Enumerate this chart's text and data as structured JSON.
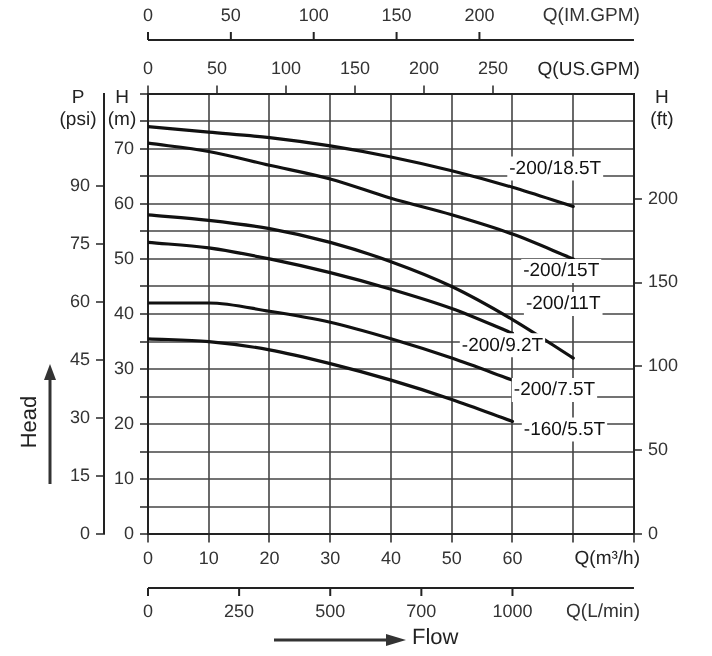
{
  "chart_data": {
    "type": "line",
    "xlabel": "Q(m³/h)",
    "ylabel": "H (m)",
    "y2label": "H (ft)",
    "y3label": "P (psi)",
    "x2label": "Q(US.GPM)",
    "annotations": [
      "Q(L/min)",
      "0",
      "250",
      "500",
      "700",
      "1000",
      "Q(IM.GPM)",
      "0",
      "50",
      "100",
      "150",
      "200",
      "Head",
      "Flow"
    ],
    "x": [
      0,
      10,
      20,
      30,
      40,
      50,
      60,
      70
    ],
    "series": [
      {
        "name": "-200/18.5T",
        "color": "#111111",
        "values": [
          74,
          73,
          72,
          70.5,
          68.5,
          66,
          63,
          59.5
        ]
      },
      {
        "name": "-200/15T",
        "color": "#111111",
        "values": [
          71,
          69.5,
          67,
          64.5,
          61,
          58,
          54.5,
          50
        ]
      },
      {
        "name": "-200/11T",
        "color": "#111111",
        "values": [
          58,
          57,
          55.5,
          53,
          49.5,
          45,
          39,
          32
        ]
      },
      {
        "name": "-200/9.2T",
        "color": "#111111",
        "values": [
          53,
          52,
          50,
          47.5,
          44.5,
          41,
          36.5,
          null
        ]
      },
      {
        "name": "-200/7.5T",
        "color": "#111111",
        "values": [
          42,
          42,
          40.5,
          38.5,
          35.5,
          32,
          28,
          null
        ]
      },
      {
        "name": "-160/5.5T",
        "color": "#111111",
        "values": [
          35.5,
          35,
          33.5,
          31,
          28,
          24.5,
          20.5,
          null
        ]
      }
    ],
    "xlim": [
      0,
      80
    ],
    "xticks": [
      0,
      10,
      20,
      30,
      40,
      50,
      60,
      {
        "value": 70,
        "label": null
      },
      {
        "value": 80,
        "label": null
      }
    ],
    "x2lim": [
      0,
      352.2
    ],
    "x2ticks": [
      0,
      50,
      100,
      150,
      200,
      250
    ],
    "ylim": [
      0,
      80
    ],
    "yticks": [
      0,
      {
        "value": 5,
        "label": null
      },
      10,
      {
        "value": 15,
        "label": null
      },
      20,
      {
        "value": 25,
        "label": null
      },
      30,
      {
        "value": 35,
        "label": null
      },
      40,
      {
        "value": 45,
        "label": null
      },
      50,
      {
        "value": 55,
        "label": null
      },
      60,
      {
        "value": 65,
        "label": null
      },
      70,
      {
        "value": 75,
        "label": null
      },
      {
        "value": 80,
        "label": null
      }
    ],
    "y2lim": [
      0,
      262.5
    ],
    "y2ticks": [
      0,
      50,
      100,
      150,
      200
    ],
    "y3lim": [
      0,
      113.8
    ],
    "y3ticks": [
      0,
      15,
      30,
      45,
      60,
      75,
      90
    ],
    "grid": true,
    "legend": false,
    "marker": "none",
    "line_style": "solid"
  }
}
